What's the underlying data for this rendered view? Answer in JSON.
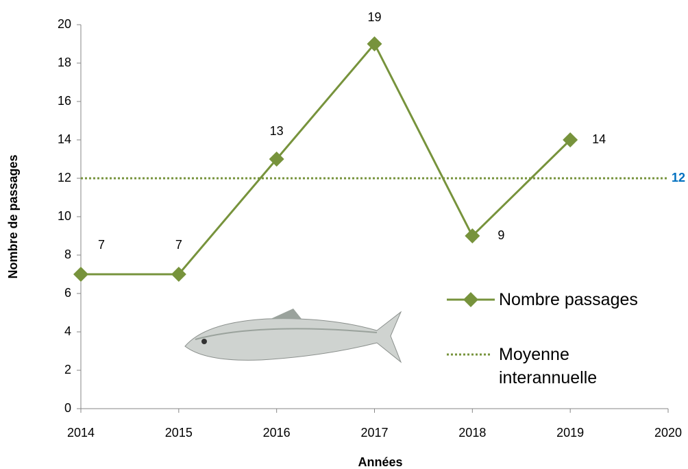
{
  "chart_data": {
    "type": "line",
    "x": [
      2014,
      2015,
      2016,
      2017,
      2018,
      2019
    ],
    "series": [
      {
        "name": "Nombre passages",
        "color": "#77933c",
        "values": [
          7,
          7,
          13,
          19,
          9,
          14
        ]
      }
    ],
    "reference_line": {
      "name": "Moyenne interannuelle",
      "value": 12,
      "color": "#77933c",
      "label_color": "#0070c0"
    },
    "xlim": [
      2014,
      2020
    ],
    "xticks": [
      2014,
      2015,
      2016,
      2017,
      2018,
      2019,
      2020
    ],
    "ylim": [
      0,
      20
    ],
    "yticks": [
      0,
      2,
      4,
      6,
      8,
      10,
      12,
      14,
      16,
      18,
      20
    ],
    "xlabel": "Années",
    "ylabel": "Nombre de passages",
    "grid": false
  }
}
